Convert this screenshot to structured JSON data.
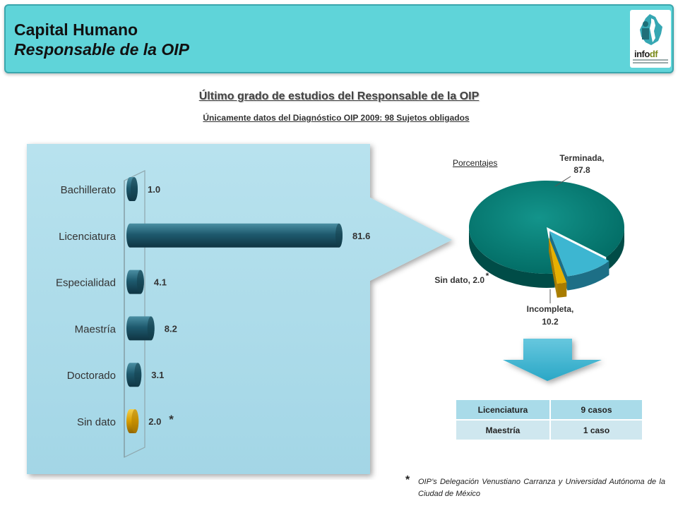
{
  "header": {
    "title": "Capital Humano",
    "subtitle": "Responsable de la OIP",
    "logo": {
      "text_main": "info",
      "text_df": "df",
      "icon": "infodf-logo-icon"
    }
  },
  "main_title": "Último grado de estudios del Responsable de la OIP",
  "sub_title": "Únicamente datos del Diagnóstico OIP 2009:  98 Sujetos obligados",
  "colors": {
    "header_bg": "#5fd4d9",
    "bar": "#1e5a6e",
    "bar_highlight": "#e0a800",
    "pie_main": "#007a73",
    "pie_incomplete": "#3db6d1",
    "pie_sin_dato": "#e6b000",
    "panel": "#a9dbe9",
    "arrow": "#3db6d1"
  },
  "chart_data": [
    {
      "type": "bar",
      "orientation": "horizontal",
      "categories": [
        "Bachillerato",
        "Licenciatura",
        "Especialidad",
        "Maestría",
        "Doctorado",
        "Sin dato"
      ],
      "values": [
        1.0,
        81.6,
        4.1,
        8.2,
        3.1,
        2.0
      ],
      "value_labels": [
        "1.0",
        "81.6",
        "4.1",
        "8.2",
        "3.1",
        "2.0"
      ],
      "annotation": "*",
      "annotated_category": "Sin dato",
      "xlim": [
        0,
        81.6
      ],
      "grid": false
    },
    {
      "type": "pie",
      "label": "Porcentajes",
      "slices": [
        {
          "name": "Terminada,",
          "value": 87.8,
          "value_label": "87.8"
        },
        {
          "name": "Incompleta,",
          "value": 10.2,
          "value_label": "10.2"
        },
        {
          "name": "Sin dato, 2.0",
          "value": 2.0,
          "value_label": ""
        }
      ],
      "annotation": "*"
    }
  ],
  "table": {
    "rows": [
      {
        "label": "Licenciatura",
        "value": "9 casos"
      },
      {
        "label": "Maestría",
        "value": "1 caso"
      }
    ]
  },
  "footnote": {
    "marker": "*",
    "text": "OIP’s Delegación Venustiano Carranza y Universidad Autónoma de la Ciudad de México"
  }
}
